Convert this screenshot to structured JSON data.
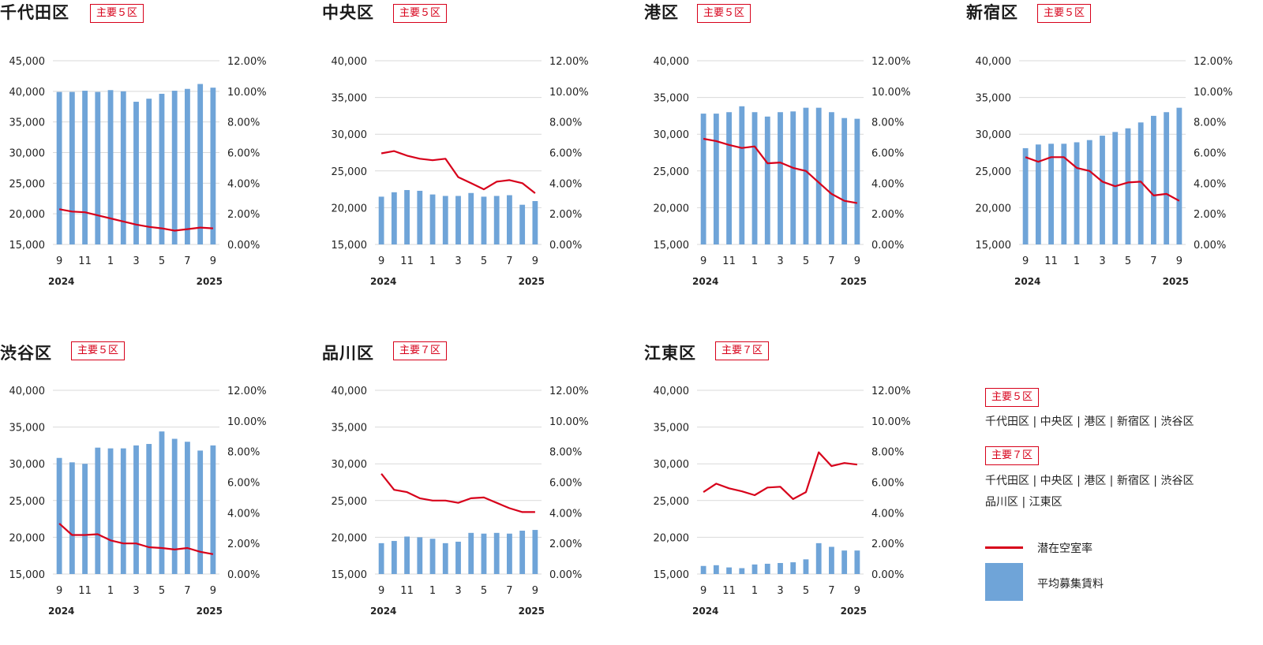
{
  "colors": {
    "bar": "#6fa4d8",
    "line": "#d7001a",
    "grid": "#d9d9d9",
    "badge": "#d7001a"
  },
  "chart_data": [
    {
      "type": "bar+line",
      "ward": "千代田区",
      "badge": "主要５区",
      "x_ticks": [
        "9",
        "",
        "11",
        "",
        "1",
        "",
        "3",
        "",
        "5",
        "",
        "7",
        "",
        "9"
      ],
      "year_start": "2024",
      "year_end": "2025",
      "y_left": [
        15000,
        45000
      ],
      "y_left_step": 5000,
      "y_left_ticks": [
        "15,000",
        "20,000",
        "25,000",
        "30,000",
        "35,000",
        "40,000",
        "45,000"
      ],
      "y_right": [
        0,
        12
      ],
      "y_right_ticks": [
        "0.00%",
        "2.00%",
        "4.00%",
        "6.00%",
        "8.00%",
        "10.00%",
        "12.00%"
      ],
      "grid": true,
      "bars": [
        39900,
        39900,
        40100,
        39900,
        40200,
        40000,
        38300,
        38800,
        39600,
        40100,
        40400,
        41200,
        40600
      ],
      "line": [
        2.3,
        2.15,
        2.1,
        1.9,
        1.7,
        1.5,
        1.3,
        1.15,
        1.05,
        0.9,
        1.0,
        1.1,
        1.05
      ]
    },
    {
      "type": "bar+line",
      "ward": "中央区",
      "badge": "主要５区",
      "x_ticks": [
        "9",
        "",
        "11",
        "",
        "1",
        "",
        "3",
        "",
        "5",
        "",
        "7",
        "",
        "9"
      ],
      "year_start": "2024",
      "year_end": "2025",
      "y_left": [
        15000,
        40000
      ],
      "y_left_step": 5000,
      "y_left_ticks": [
        "15,000",
        "20,000",
        "25,000",
        "30,000",
        "35,000",
        "40,000"
      ],
      "y_right": [
        0,
        12
      ],
      "y_right_ticks": [
        "0.00%",
        "2.00%",
        "4.00%",
        "6.00%",
        "8.00%",
        "10.00%",
        "12.00%"
      ],
      "grid": true,
      "bars": [
        21500,
        22100,
        22400,
        22300,
        21800,
        21600,
        21600,
        22000,
        21500,
        21600,
        21700,
        20400,
        20900
      ],
      "line": [
        5.95,
        6.1,
        5.8,
        5.6,
        5.5,
        5.6,
        4.4,
        4.0,
        3.6,
        4.1,
        4.2,
        4.0,
        3.35
      ]
    },
    {
      "type": "bar+line",
      "ward": "港区",
      "badge": "主要５区",
      "x_ticks": [
        "9",
        "",
        "11",
        "",
        "1",
        "",
        "3",
        "",
        "5",
        "",
        "7",
        "",
        "9"
      ],
      "year_start": "2024",
      "year_end": "2025",
      "y_left": [
        15000,
        40000
      ],
      "y_left_step": 5000,
      "y_left_ticks": [
        "15,000",
        "20,000",
        "25,000",
        "30,000",
        "35,000",
        "40,000"
      ],
      "y_right": [
        0,
        12
      ],
      "y_right_ticks": [
        "0.00%",
        "2.00%",
        "4.00%",
        "6.00%",
        "8.00%",
        "10.00%",
        "12.00%"
      ],
      "grid": true,
      "bars": [
        32800,
        32800,
        33000,
        33800,
        33000,
        32400,
        33000,
        33100,
        33600,
        33600,
        33000,
        32200,
        32100
      ],
      "line": [
        6.9,
        6.75,
        6.5,
        6.3,
        6.4,
        5.3,
        5.35,
        5.0,
        4.8,
        4.05,
        3.3,
        2.85,
        2.7
      ]
    },
    {
      "type": "bar+line",
      "ward": "新宿区",
      "badge": "主要５区",
      "x_ticks": [
        "9",
        "",
        "11",
        "",
        "1",
        "",
        "3",
        "",
        "5",
        "",
        "7",
        "",
        "9"
      ],
      "year_start": "2024",
      "year_end": "2025",
      "y_left": [
        15000,
        40000
      ],
      "y_left_step": 5000,
      "y_left_ticks": [
        "15,000",
        "20,000",
        "25,000",
        "30,000",
        "35,000",
        "40,000"
      ],
      "y_right": [
        0,
        12
      ],
      "y_right_ticks": [
        "0.00%",
        "2.00%",
        "4.00%",
        "6.00%",
        "8.00%",
        "10.00%",
        "12.00%"
      ],
      "grid": true,
      "bars": [
        28100,
        28600,
        28700,
        28700,
        28900,
        29200,
        29800,
        30300,
        30800,
        31600,
        32500,
        33000,
        33600
      ],
      "line": [
        5.7,
        5.4,
        5.7,
        5.7,
        5.0,
        4.8,
        4.1,
        3.8,
        4.05,
        4.1,
        3.2,
        3.3,
        2.85
      ]
    },
    {
      "type": "bar+line",
      "ward": "渋谷区",
      "badge": "主要５区",
      "x_ticks": [
        "9",
        "",
        "11",
        "",
        "1",
        "",
        "3",
        "",
        "5",
        "",
        "7",
        "",
        "9"
      ],
      "year_start": "2024",
      "year_end": "2025",
      "y_left": [
        15000,
        40000
      ],
      "y_left_step": 5000,
      "y_left_ticks": [
        "15,000",
        "20,000",
        "25,000",
        "30,000",
        "35,000",
        "40,000"
      ],
      "y_right": [
        0,
        12
      ],
      "y_right_ticks": [
        "0.00%",
        "2.00%",
        "4.00%",
        "6.00%",
        "8.00%",
        "10.00%",
        "12.00%"
      ],
      "grid": true,
      "bars": [
        30800,
        30200,
        30000,
        32200,
        32100,
        32100,
        32500,
        32700,
        34400,
        33400,
        33000,
        31800,
        32500
      ],
      "line": [
        3.3,
        2.55,
        2.55,
        2.6,
        2.2,
        2.0,
        2.0,
        1.75,
        1.7,
        1.6,
        1.7,
        1.45,
        1.3
      ]
    },
    {
      "type": "bar+line",
      "ward": "品川区",
      "badge": "主要７区",
      "x_ticks": [
        "9",
        "",
        "11",
        "",
        "1",
        "",
        "3",
        "",
        "5",
        "",
        "7",
        "",
        "9"
      ],
      "year_start": "2024",
      "year_end": "2025",
      "y_left": [
        15000,
        40000
      ],
      "y_left_step": 5000,
      "y_left_ticks": [
        "15,000",
        "20,000",
        "25,000",
        "30,000",
        "35,000",
        "40,000"
      ],
      "y_right": [
        0,
        12
      ],
      "y_right_ticks": [
        "0.00%",
        "2.00%",
        "4.00%",
        "6.00%",
        "8.00%",
        "10.00%",
        "12.00%"
      ],
      "grid": true,
      "bars": [
        19200,
        19500,
        20100,
        20000,
        19800,
        19200,
        19400,
        20600,
        20500,
        20600,
        20500,
        20900,
        21000
      ],
      "line": [
        6.55,
        5.5,
        5.35,
        4.95,
        4.8,
        4.8,
        4.65,
        4.95,
        5.0,
        4.65,
        4.3,
        4.05,
        4.05
      ]
    },
    {
      "type": "bar+line",
      "ward": "江東区",
      "badge": "主要７区",
      "x_ticks": [
        "9",
        "",
        "11",
        "",
        "1",
        "",
        "3",
        "",
        "5",
        "",
        "7",
        "",
        "9"
      ],
      "year_start": "2024",
      "year_end": "2025",
      "y_left": [
        15000,
        40000
      ],
      "y_left_step": 5000,
      "y_left_ticks": [
        "15,000",
        "20,000",
        "25,000",
        "30,000",
        "35,000",
        "40,000"
      ],
      "y_right": [
        0,
        12
      ],
      "y_right_ticks": [
        "0.00%",
        "2.00%",
        "4.00%",
        "6.00%",
        "8.00%",
        "10.00%",
        "12.00%"
      ],
      "grid": true,
      "bars": [
        16100,
        16200,
        15900,
        15800,
        16300,
        16400,
        16500,
        16600,
        17000,
        19200,
        18700,
        18200,
        18200
      ],
      "line": [
        5.35,
        5.9,
        5.6,
        5.4,
        5.15,
        5.65,
        5.7,
        4.9,
        5.35,
        7.95,
        7.05,
        7.25,
        7.15
      ]
    }
  ],
  "legend": {
    "group5_badge": "主要５区",
    "group5_wards": "千代田区 | 中央区 | 港区 | 新宿区 | 渋谷区",
    "group7_badge": "主要７区",
    "group7_wards_line1": "千代田区 | 中央区 | 港区 | 新宿区 | 渋谷区",
    "group7_wards_line2": "品川区 | 江東区",
    "line_label": "潜在空室率",
    "bar_label": "平均募集賃料"
  }
}
